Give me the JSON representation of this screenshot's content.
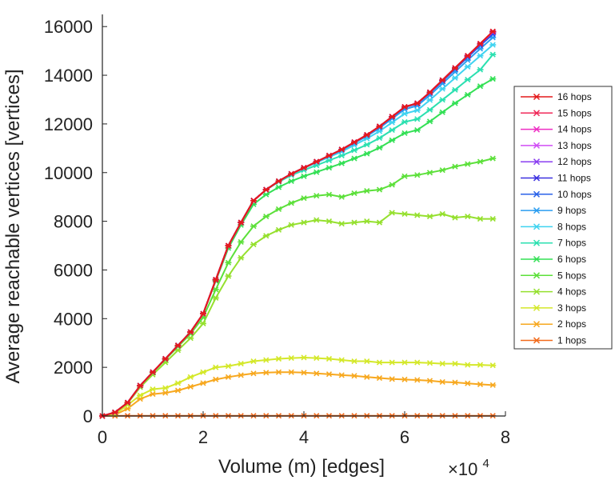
{
  "chart_data": {
    "type": "line",
    "xlabel": "Volume (m) [edges]",
    "ylabel": "Average reachable vertices [vertices]",
    "x_multiplier_base": "×10",
    "x_multiplier_exp": "4",
    "xlim": [
      0,
      8
    ],
    "ylim": [
      0,
      16500
    ],
    "xticks": [
      0,
      2,
      4,
      6,
      8
    ],
    "xtick_labels": [
      "0",
      "2",
      "4",
      "6",
      "8"
    ],
    "yticks": [
      0,
      2000,
      4000,
      6000,
      8000,
      10000,
      12000,
      14000,
      16000
    ],
    "ytick_labels": [
      "0",
      "2000",
      "4000",
      "6000",
      "8000",
      "10000",
      "12000",
      "14000",
      "16000"
    ],
    "grid": false,
    "legend_position": "right",
    "x": [
      0,
      0.25,
      0.5,
      0.75,
      1.0,
      1.25,
      1.5,
      1.75,
      2.0,
      2.25,
      2.5,
      2.75,
      3.0,
      3.25,
      3.5,
      3.75,
      4.0,
      4.25,
      4.5,
      4.75,
      5.0,
      5.25,
      5.5,
      5.75,
      6.0,
      6.25,
      6.5,
      6.75,
      7.0,
      7.25,
      7.5,
      7.75
    ],
    "series": [
      {
        "name": "16 hops",
        "color": "#e41a1c",
        "values": [
          0,
          150,
          550,
          1250,
          1800,
          2350,
          2900,
          3450,
          4200,
          5600,
          7000,
          7950,
          8850,
          9300,
          9650,
          9950,
          10200,
          10450,
          10700,
          10950,
          11250,
          11550,
          11900,
          12300,
          12700,
          12850,
          13300,
          13800,
          14300,
          14800,
          15300,
          15800
        ]
      },
      {
        "name": "15 hops",
        "color": "#f02a5a",
        "values": [
          0,
          150,
          550,
          1250,
          1800,
          2350,
          2900,
          3450,
          4200,
          5600,
          7000,
          7950,
          8850,
          9300,
          9650,
          9950,
          10200,
          10450,
          10700,
          10950,
          11250,
          11550,
          11900,
          12300,
          12700,
          12850,
          13300,
          13800,
          14300,
          14800,
          15300,
          15800
        ]
      },
      {
        "name": "14 hops",
        "color": "#ee2fc4",
        "values": [
          0,
          150,
          550,
          1250,
          1800,
          2350,
          2900,
          3450,
          4200,
          5600,
          7000,
          7950,
          8850,
          9300,
          9650,
          9950,
          10200,
          10450,
          10700,
          10950,
          11250,
          11550,
          11900,
          12300,
          12700,
          12850,
          13300,
          13800,
          14300,
          14800,
          15300,
          15790
        ]
      },
      {
        "name": "13 hops",
        "color": "#d04ef5",
        "values": [
          0,
          150,
          550,
          1250,
          1800,
          2350,
          2900,
          3450,
          4200,
          5600,
          7000,
          7950,
          8850,
          9300,
          9650,
          9950,
          10200,
          10450,
          10700,
          10950,
          11250,
          11550,
          11900,
          12300,
          12700,
          12850,
          13300,
          13800,
          14300,
          14800,
          15300,
          15780
        ]
      },
      {
        "name": "12 hops",
        "color": "#8a3ff0",
        "values": [
          0,
          150,
          550,
          1250,
          1800,
          2350,
          2900,
          3450,
          4200,
          5600,
          7000,
          7950,
          8850,
          9300,
          9650,
          9950,
          10200,
          10450,
          10700,
          10950,
          11250,
          11550,
          11900,
          12300,
          12700,
          12850,
          13300,
          13800,
          14300,
          14790,
          15290,
          15770
        ]
      },
      {
        "name": "11 hops",
        "color": "#3b30e0",
        "values": [
          0,
          150,
          550,
          1250,
          1800,
          2350,
          2900,
          3450,
          4200,
          5600,
          7000,
          7950,
          8850,
          9300,
          9650,
          9950,
          10200,
          10450,
          10700,
          10950,
          11250,
          11550,
          11900,
          12300,
          12700,
          12850,
          13300,
          13790,
          14290,
          14780,
          15270,
          15740
        ]
      },
      {
        "name": "10 hops",
        "color": "#2a62e8",
        "values": [
          0,
          150,
          550,
          1250,
          1800,
          2350,
          2900,
          3450,
          4200,
          5600,
          7000,
          7950,
          8850,
          9300,
          9650,
          9950,
          10200,
          10450,
          10700,
          10950,
          11250,
          11550,
          11880,
          12280,
          12680,
          12830,
          13270,
          13760,
          14250,
          14740,
          15220,
          15680
        ]
      },
      {
        "name": "9 hops",
        "color": "#2a9df0",
        "values": [
          0,
          150,
          550,
          1250,
          1800,
          2350,
          2900,
          3450,
          4200,
          5600,
          7000,
          7950,
          8850,
          9300,
          9650,
          9950,
          10200,
          10440,
          10680,
          10920,
          11210,
          11500,
          11830,
          12220,
          12600,
          12750,
          13180,
          13660,
          14140,
          14620,
          15090,
          15550
        ]
      },
      {
        "name": "8 hops",
        "color": "#3fd3f0",
        "values": [
          0,
          150,
          550,
          1250,
          1800,
          2350,
          2900,
          3450,
          4200,
          5600,
          7000,
          7950,
          8850,
          9300,
          9650,
          9940,
          10180,
          10410,
          10640,
          10860,
          11130,
          11400,
          11700,
          12060,
          12420,
          12560,
          12980,
          13440,
          13890,
          14350,
          14800,
          15250
        ]
      },
      {
        "name": "7 hops",
        "color": "#2be0b0",
        "values": [
          0,
          150,
          550,
          1250,
          1800,
          2350,
          2900,
          3450,
          4200,
          5600,
          7000,
          7950,
          8850,
          9290,
          9620,
          9890,
          10100,
          10300,
          10500,
          10700,
          10920,
          11150,
          11420,
          11750,
          12080,
          12200,
          12580,
          12990,
          13400,
          13820,
          14230,
          14850
        ]
      },
      {
        "name": "6 hops",
        "color": "#33e055",
        "values": [
          0,
          150,
          550,
          1250,
          1800,
          2350,
          2900,
          3450,
          4200,
          5550,
          6900,
          7850,
          8700,
          9100,
          9400,
          9650,
          9850,
          10020,
          10200,
          10380,
          10580,
          10780,
          11020,
          11330,
          11620,
          11750,
          12100,
          12480,
          12850,
          13200,
          13550,
          13850
        ]
      },
      {
        "name": "5 hops",
        "color": "#5ce03a",
        "values": [
          0,
          150,
          540,
          1240,
          1780,
          2320,
          2850,
          3380,
          4050,
          5200,
          6300,
          7150,
          7800,
          8200,
          8500,
          8750,
          8950,
          9050,
          9100,
          9000,
          9150,
          9250,
          9300,
          9500,
          9850,
          9900,
          10000,
          10100,
          10250,
          10350,
          10450,
          10580
        ]
      },
      {
        "name": "4 hops",
        "color": "#95e02e",
        "values": [
          0,
          140,
          520,
          1180,
          1700,
          2200,
          2700,
          3200,
          3800,
          4850,
          5750,
          6500,
          7050,
          7400,
          7650,
          7850,
          7950,
          8050,
          8000,
          7900,
          7950,
          8000,
          7950,
          8350,
          8300,
          8250,
          8200,
          8300,
          8150,
          8200,
          8100,
          8100
        ]
      },
      {
        "name": "3 hops",
        "color": "#d4e82a",
        "values": [
          0,
          80,
          450,
          850,
          1100,
          1150,
          1350,
          1600,
          1800,
          2000,
          2050,
          2150,
          2250,
          2300,
          2350,
          2380,
          2400,
          2380,
          2350,
          2300,
          2250,
          2250,
          2200,
          2200,
          2200,
          2200,
          2180,
          2150,
          2150,
          2100,
          2100,
          2080
        ]
      },
      {
        "name": "2 hops",
        "color": "#f7a81f",
        "values": [
          0,
          50,
          300,
          700,
          900,
          950,
          1050,
          1200,
          1350,
          1500,
          1600,
          1680,
          1750,
          1780,
          1800,
          1800,
          1780,
          1750,
          1720,
          1680,
          1650,
          1600,
          1560,
          1520,
          1500,
          1480,
          1450,
          1400,
          1380,
          1340,
          1300,
          1270
        ]
      },
      {
        "name": "1 hops",
        "color": "#f26a1b",
        "values": [
          0,
          5,
          10,
          10,
          10,
          10,
          10,
          10,
          10,
          10,
          10,
          10,
          10,
          10,
          10,
          10,
          10,
          10,
          10,
          10,
          10,
          10,
          10,
          10,
          10,
          10,
          10,
          10,
          10,
          10,
          10,
          10
        ]
      }
    ]
  }
}
